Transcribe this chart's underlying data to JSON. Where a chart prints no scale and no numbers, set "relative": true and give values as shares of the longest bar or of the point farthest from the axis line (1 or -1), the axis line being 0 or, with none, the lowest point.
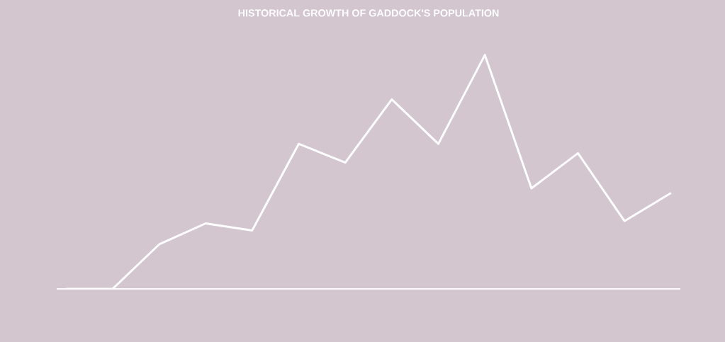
{
  "chart_data": {
    "type": "line",
    "title": "HISTORICAL GROWTH OF GADDOCK'S POPULATION",
    "relative": true,
    "categories": [
      null,
      null,
      null,
      null,
      null,
      null,
      null,
      null,
      null,
      null,
      null,
      null,
      null,
      null
    ],
    "values": [
      0,
      0,
      0.19,
      0.28,
      0.25,
      0.62,
      0.54,
      0.81,
      0.62,
      1,
      0.43,
      0.58,
      0.29,
      0.41
    ],
    "color": "#ffffff",
    "marker": "none",
    "line_style": "solid"
  }
}
